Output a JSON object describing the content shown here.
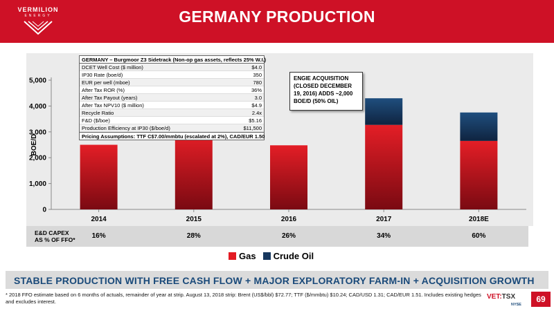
{
  "header": {
    "logo_name": "VERMILION",
    "logo_sub": "ENERGY",
    "title": "GERMANY PRODUCTION"
  },
  "assumptions": {
    "title": "GERMANY – Burgmoor Z3 Sidetrack (Non-op gas assets, reflects 25% W.I.)",
    "rows": [
      {
        "label": "DCET Well Cost ($ million)",
        "value": "$4.0"
      },
      {
        "label": "IP30 Rate (boe/d)",
        "value": "350"
      },
      {
        "label": "EUR per well (mboe)",
        "value": "780"
      },
      {
        "label": "After Tax ROR (%)",
        "value": "36%"
      },
      {
        "label": "After Tax Payout (years)",
        "value": "3.0"
      },
      {
        "label": "After Tax NPV10 ($ million)",
        "value": "$4.9"
      },
      {
        "label": "Recycle Ratio",
        "value": "2.4x"
      },
      {
        "label": "F&D ($/boe)",
        "value": "$5.16"
      },
      {
        "label": "Production Efficiency at IP30 ($/boe/d)",
        "value": "$11,500"
      }
    ],
    "footer": "Pricing Assumptions: TTF C$7.00/mmbtu (escalated at 2%), CAD/EUR 1.50"
  },
  "callout": "ENGIE ACQUISITION (CLOSED DECEMBER 19, 2016) ADDS ~2,000 BOE/D (50% OIL)",
  "capex": {
    "label_line1": "E&D CAPEX",
    "label_line2": "AS % OF FFO*",
    "values": [
      "16%",
      "28%",
      "26%",
      "34%",
      "60%"
    ]
  },
  "chart_data": {
    "type": "bar",
    "stacked": true,
    "categories": [
      "2014",
      "2015",
      "2016",
      "2017",
      "2018E"
    ],
    "series": [
      {
        "name": "Gas",
        "color": "#e31b23",
        "values": [
          2500,
          2900,
          2480,
          3270,
          2650
        ]
      },
      {
        "name": "Crude Oil",
        "color": "#17375e",
        "values": [
          0,
          0,
          0,
          1030,
          1100
        ]
      }
    ],
    "ylabel": "BOE/D",
    "xlabel": "",
    "ylim": [
      0,
      5000
    ],
    "yticks": [
      "0",
      "1,000",
      "2,000",
      "3,000",
      "4,000",
      "5,000"
    ],
    "ytick_values": [
      0,
      1000,
      2000,
      3000,
      4000,
      5000
    ],
    "grid": false,
    "legend": "bottom"
  },
  "banner": "STABLE PRODUCTION WITH FREE CASH FLOW + MAJOR EXPLORATORY FARM-IN + ACQUISITION GROWTH",
  "footnote": "* 2018 FFO estimate based on 6 months of actuals, remainder of year at strip. August 13, 2018 strip: Brent (US$/bbl) $72.77; TTF ($/mmbtu) $10.24; CAD/USD 1.31; CAD/EUR 1.51. Includes existing hedges and excludes interest.",
  "ticker": {
    "vet": "VET:",
    "tsx": "TSX",
    "nyse": "NYSE"
  },
  "page_number": "69"
}
